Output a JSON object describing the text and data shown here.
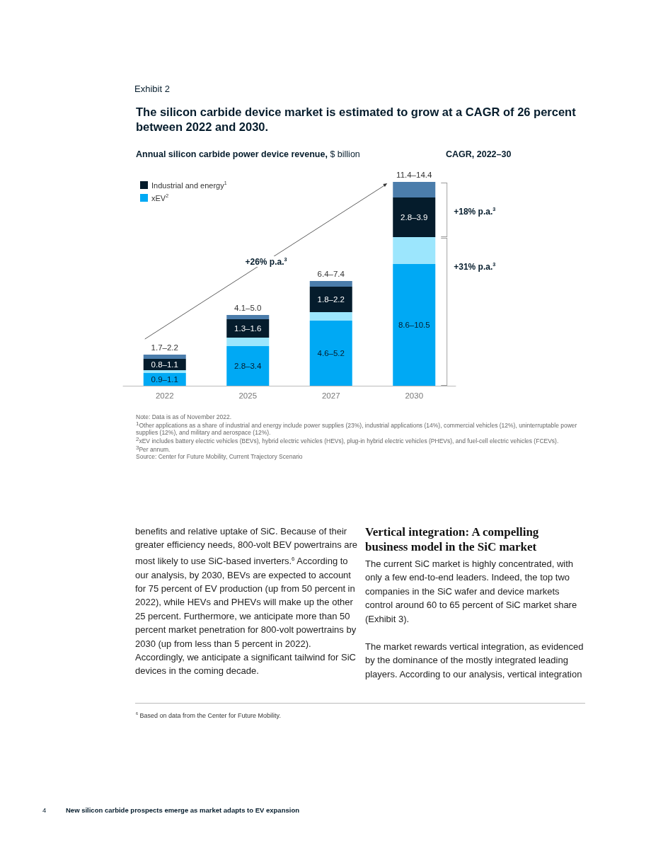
{
  "chart_data": {
    "type": "bar",
    "stacked": true,
    "title": "The silicon carbide device market is estimated to grow at a CAGR of 26 percent between 2022 and 2030.",
    "ylabel": "Annual silicon carbide power device revenue, $ billion",
    "categories": [
      "2022",
      "2025",
      "2027",
      "2030"
    ],
    "series": [
      {
        "name": "xEV$^{2}$",
        "color": "#00a9f4",
        "values": [
          0.9,
          2.8,
          4.6,
          8.6
        ],
        "value_labels": [
          "0.9–1.1",
          "2.8–3.4",
          "4.6–5.2",
          "8.6–10.5"
        ]
      },
      {
        "color": "#9ce6fd",
        "values": [
          0.2,
          0.6,
          0.6,
          1.9
        ]
      },
      {
        "name": "Industrial and energy$^{1}$",
        "color": "#051c2c",
        "values": [
          0.8,
          1.3,
          1.8,
          2.8
        ],
        "value_labels": [
          "0.8–1.1",
          "1.3–1.6",
          "1.8–2.2",
          "2.8–3.9"
        ]
      },
      {
        "color": "#4b7dab",
        "values": [
          0.3,
          0.3,
          0.4,
          1.1
        ]
      }
    ],
    "totals": [
      "1.7–2.2",
      "4.1–5.0",
      "6.4–7.4",
      "11.4–14.4"
    ],
    "legend": "top left",
    "annotations": [
      "Exhibit 2",
      "CAGR, 2022–30",
      "+26% p.a.$^{3}$",
      "+18% p.a.$^{3}$",
      "+31% p.a.$^{3}$",
      "Note: Data is as of November 2022.",
      "$^{1}$Other applications as a share of industrial and energy include power supplies (23%), industrial applications (14%), commercial vehicles (12%), uninterruptable power supplies (12%), and military and aerospace (12%).",
      "$^{2}$xEV includes battery electric vehicles (BEVs), hybrid electric vehicles (HEVs), plug-in hybrid electric vehicles (PHEVs), and fuel-cell electric vehicles (FCEVs).",
      "$^{3}$Per annum.",
      "Source: Center for Future Mobility, Current Trajectory Scenario",
      "benefits and relative uptake of SiC. Because of their greater efficiency needs, 800-volt BEV powertrains are most likely to use SiC-based inverters.$^{6}$ According to our analysis, by 2030, BEVs are expected to account for 75 percent of EV production (up from 50 percent in 2022), while HEVs and PHEVs will make up the other 25 percent. Furthermore, we anticipate more than 50 percent market penetration for 800-volt powertrains by 2030 (up from less than 5 percent in 2022). Accordingly, we anticipate a significant tailwind for SiC devices in the coming decade.",
      "Vertical integration: A compelling business model in the SiC market",
      "The current SiC market is highly concentrated, with only a few end-to-end leaders. Indeed, the top two companies in the SiC wafer and device markets control around 60 to 65 percent of SiC market share (Exhibit 3).",
      "The market rewards vertical integration, as evidenced by the dominance of the mostly integrated leading players. According to our analysis, vertical integration",
      "$^{6}$  Based on data from the Center for Future Mobility.",
      "4",
      "New silicon carbide prospects emerge as market adapts to EV expansion"
    ]
  }
}
